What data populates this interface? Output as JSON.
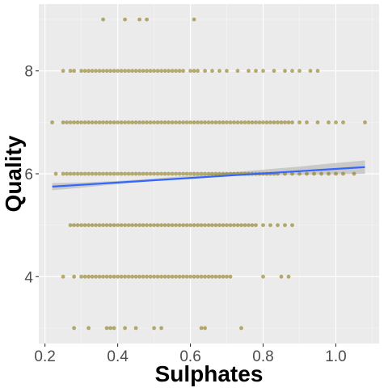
{
  "chart_data": {
    "type": "scatter",
    "title": "",
    "xlabel": "Sulphates",
    "ylabel": "Quality",
    "xlim": [
      0.183,
      1.119
    ],
    "ylim": [
      2.7,
      9.3
    ],
    "x_ticks": [
      0.2,
      0.4,
      0.6,
      0.8,
      1.0
    ],
    "x_tick_labels": [
      "0.2",
      "0.4",
      "0.6",
      "0.8",
      "1.0"
    ],
    "y_ticks": [
      4,
      6,
      8
    ],
    "y_tick_labels": [
      "4",
      "6",
      "8"
    ],
    "grid": true,
    "point_color": "#7f6c00",
    "line_color": "#3366ff",
    "band_color": "#bdbdbd",
    "panel_color": "#ebebeb",
    "points_by_quality": [
      {
        "quality": 9,
        "x": [
          0.36,
          0.42,
          0.46,
          0.48,
          0.61
        ]
      },
      {
        "quality": 8,
        "x": [
          0.25,
          0.27,
          0.28,
          0.3,
          0.31,
          0.32,
          0.33,
          0.34,
          0.35,
          0.36,
          0.37,
          0.38,
          0.39,
          0.4,
          0.41,
          0.42,
          0.43,
          0.44,
          0.45,
          0.46,
          0.47,
          0.48,
          0.49,
          0.5,
          0.51,
          0.52,
          0.53,
          0.54,
          0.55,
          0.56,
          0.57,
          0.58,
          0.6,
          0.61,
          0.62,
          0.64,
          0.66,
          0.68,
          0.7,
          0.73,
          0.76,
          0.78,
          0.8,
          0.83,
          0.86,
          0.88,
          0.9,
          0.93,
          0.95
        ]
      },
      {
        "quality": 7,
        "x": [
          0.22,
          0.25,
          0.26,
          0.27,
          0.28,
          0.29,
          0.3,
          0.31,
          0.32,
          0.33,
          0.34,
          0.35,
          0.36,
          0.37,
          0.38,
          0.39,
          0.4,
          0.41,
          0.42,
          0.43,
          0.44,
          0.45,
          0.46,
          0.47,
          0.48,
          0.49,
          0.5,
          0.51,
          0.52,
          0.53,
          0.54,
          0.55,
          0.56,
          0.57,
          0.58,
          0.59,
          0.6,
          0.61,
          0.62,
          0.63,
          0.64,
          0.65,
          0.66,
          0.67,
          0.68,
          0.69,
          0.7,
          0.71,
          0.72,
          0.73,
          0.74,
          0.75,
          0.76,
          0.77,
          0.78,
          0.79,
          0.8,
          0.81,
          0.82,
          0.83,
          0.84,
          0.85,
          0.86,
          0.87,
          0.88,
          0.9,
          0.92,
          0.95,
          0.98,
          1.0,
          1.02,
          1.08
        ]
      },
      {
        "quality": 6,
        "x": [
          0.23,
          0.25,
          0.26,
          0.27,
          0.28,
          0.29,
          0.3,
          0.31,
          0.32,
          0.33,
          0.34,
          0.35,
          0.36,
          0.37,
          0.38,
          0.39,
          0.4,
          0.41,
          0.42,
          0.43,
          0.44,
          0.45,
          0.46,
          0.47,
          0.48,
          0.49,
          0.5,
          0.51,
          0.52,
          0.53,
          0.54,
          0.55,
          0.56,
          0.57,
          0.58,
          0.59,
          0.6,
          0.61,
          0.62,
          0.63,
          0.64,
          0.65,
          0.66,
          0.67,
          0.68,
          0.69,
          0.7,
          0.71,
          0.72,
          0.73,
          0.74,
          0.75,
          0.76,
          0.77,
          0.78,
          0.79,
          0.8,
          0.81,
          0.82,
          0.83,
          0.84,
          0.86,
          0.88,
          0.9,
          0.92,
          0.94,
          0.96,
          0.98,
          1.0,
          1.02,
          1.05
        ]
      },
      {
        "quality": 5,
        "x": [
          0.27,
          0.28,
          0.29,
          0.3,
          0.31,
          0.32,
          0.33,
          0.34,
          0.35,
          0.36,
          0.37,
          0.38,
          0.39,
          0.4,
          0.41,
          0.42,
          0.43,
          0.44,
          0.45,
          0.46,
          0.47,
          0.48,
          0.49,
          0.5,
          0.51,
          0.52,
          0.53,
          0.54,
          0.55,
          0.56,
          0.57,
          0.58,
          0.59,
          0.6,
          0.61,
          0.62,
          0.63,
          0.64,
          0.65,
          0.66,
          0.67,
          0.68,
          0.69,
          0.7,
          0.71,
          0.72,
          0.73,
          0.74,
          0.75,
          0.76,
          0.77,
          0.78,
          0.8,
          0.82,
          0.84,
          0.86,
          0.88
        ]
      },
      {
        "quality": 4,
        "x": [
          0.25,
          0.28,
          0.3,
          0.31,
          0.32,
          0.33,
          0.34,
          0.35,
          0.36,
          0.37,
          0.38,
          0.39,
          0.4,
          0.41,
          0.42,
          0.43,
          0.44,
          0.45,
          0.46,
          0.47,
          0.48,
          0.49,
          0.5,
          0.51,
          0.52,
          0.53,
          0.54,
          0.55,
          0.56,
          0.57,
          0.58,
          0.59,
          0.6,
          0.61,
          0.62,
          0.63,
          0.64,
          0.65,
          0.66,
          0.67,
          0.68,
          0.69,
          0.7,
          0.71,
          0.8,
          0.85,
          0.87
        ]
      },
      {
        "quality": 3,
        "x": [
          0.28,
          0.32,
          0.37,
          0.38,
          0.39,
          0.42,
          0.45,
          0.5,
          0.52,
          0.63,
          0.64,
          0.74
        ]
      }
    ],
    "trend_line": {
      "x": [
        0.22,
        1.08
      ],
      "y": [
        5.75,
        6.13
      ]
    },
    "confidence_band": {
      "x": [
        0.22,
        0.3,
        0.4,
        0.5,
        0.6,
        0.7,
        0.8,
        0.9,
        1.0,
        1.08
      ],
      "lower": [
        5.68,
        5.73,
        5.8,
        5.86,
        5.92,
        5.96,
        5.97,
        5.98,
        5.99,
        6.0
      ],
      "upper": [
        5.82,
        5.83,
        5.86,
        5.91,
        5.96,
        6.02,
        6.08,
        6.14,
        6.21,
        6.26
      ]
    }
  }
}
